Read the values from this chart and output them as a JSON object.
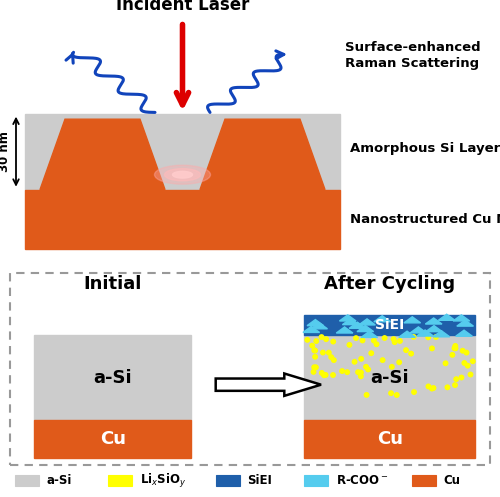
{
  "colors": {
    "a_si": "#cccccc",
    "cu": "#e05a1a",
    "siei": "#1f5faa",
    "r_coo": "#55ccee",
    "lixsioy": "#ffff00",
    "red_arrow": "#dd0000",
    "blue_arrow": "#1144bb",
    "white": "#ffffff",
    "black": "#000000"
  },
  "legend_items": [
    {
      "label": "a-Si",
      "color": "#cccccc"
    },
    {
      "label": "Li$_x$SiO$_y$",
      "color": "#ffff00"
    },
    {
      "label": "SiEI",
      "color": "#1f5faa"
    },
    {
      "label": "R-COO$^-$",
      "color": "#55ccee"
    },
    {
      "label": "Cu",
      "color": "#e05a1a"
    }
  ]
}
